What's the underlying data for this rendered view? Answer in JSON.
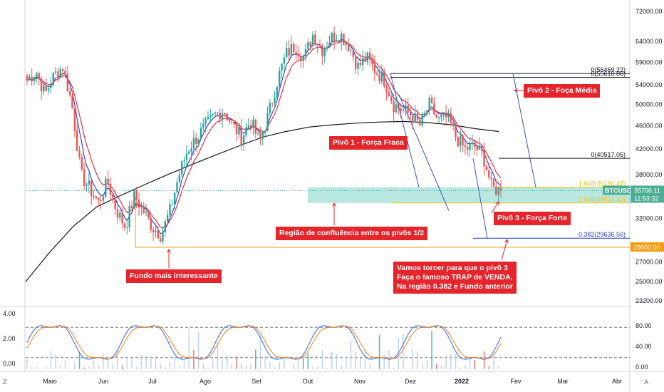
{
  "symbol": "BTCUSD",
  "last_price": "35706.11",
  "countdown": "11:53:32",
  "price_axis": {
    "ticks": [
      "72000.00",
      "64000.00",
      "59000.00",
      "54000.00",
      "50000.00",
      "46000.00",
      "42000.00",
      "38000.00",
      "32000.00",
      "27000.00",
      "25000.00",
      "23200.00"
    ],
    "tick_values": [
      72000,
      64000,
      59000,
      54000,
      50000,
      46000,
      42000,
      38000,
      32000,
      27000,
      25000,
      23200
    ],
    "level_tag": "28600.00"
  },
  "indicator_axis": {
    "left_ticks": [
      "4.00",
      "2.00",
      "0.00"
    ],
    "right_ticks": [
      "80.00",
      "40.00",
      "0.00"
    ]
  },
  "time_axis": {
    "labels": [
      "Maio",
      "Jun",
      "Jul",
      "Ago",
      "Set",
      "Out",
      "Nov",
      "Dez",
      "2022",
      "Fev",
      "Mar",
      "Abr"
    ]
  },
  "corner_buttons": {
    "left": "Z",
    "right": "A"
  },
  "fib_labels": {
    "f0_top": "0(56469.22)",
    "f0_top2": "0(55610.86)",
    "f0_mid": "0(40517.05)",
    "f1618_a": "1.618(36194.42)",
    "f1618_b": "1.618(34023.32)",
    "f0382": "0.382(29636.56)"
  },
  "annotations": {
    "pivo1": "Pivô 1 - Força Fraca",
    "pivo2": "Pivô 2 - Foça Média",
    "pivo3": "Pivô 3 - Força Forte",
    "regiao": "Região de confluência entre os pivôs 1/2",
    "fundo": "Fundo mais interessante",
    "note": "Vamos torcer para que o pivô 3\nFaça o famoso TRAP de VENDA,\nNa região 0.382 e Fundo anterior"
  },
  "colors": {
    "up": "#26a69a",
    "down": "#ef5350",
    "ema_fast": "#2430d8",
    "ema_slow": "#e0202e",
    "ma200": "#131722",
    "zone": "#7fd6c7",
    "fib_gold": "#f0c419",
    "fib_black": "#131722",
    "fib_blue": "#2a3bc2",
    "orange": "#f39c12",
    "annotation": "#e5242b"
  },
  "chart_data": {
    "type": "candlestick",
    "series": [
      {
        "name": "price_path",
        "values": [
          55000,
          57000,
          52000,
          56000,
          58000,
          50000,
          38000,
          36000,
          34000,
          37000,
          33000,
          31000,
          35000,
          33000,
          31000,
          30000,
          33000,
          38000,
          42000,
          44000,
          46000,
          48000,
          49000,
          46000,
          44000,
          47000,
          43000,
          48000,
          55000,
          61000,
          63000,
          60000,
          66000,
          62000,
          65000,
          66000,
          63000,
          58000,
          60000,
          57000,
          55000,
          50000,
          49000,
          48000,
          46000,
          50000,
          47000,
          47500,
          44000,
          42000,
          42500,
          41000,
          36000,
          35706
        ]
      },
      {
        "name": "ma200_path",
        "values": [
          25000,
          28000,
          31000,
          33500,
          35000,
          36500,
          38000,
          39500,
          41000,
          42500,
          44000,
          45000,
          45800,
          46200,
          46500,
          46700,
          46800,
          46600,
          46200,
          45500,
          45000
        ]
      }
    ]
  }
}
